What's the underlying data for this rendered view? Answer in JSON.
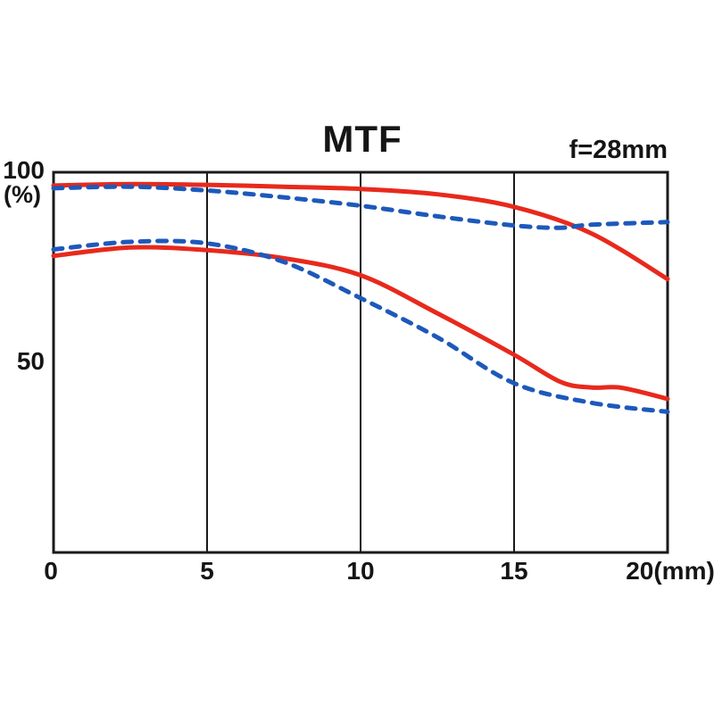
{
  "chart": {
    "title": "MTF",
    "annotation": "f=28mm",
    "y_axis": {
      "labels": [
        "100",
        "(%)",
        "50"
      ]
    },
    "x_axis": {
      "labels": [
        "0",
        "5",
        "10",
        "15",
        "20(mm)"
      ]
    }
  },
  "chart_data": {
    "type": "line",
    "title": "MTF",
    "annotation": "f=28mm",
    "x_unit": "mm",
    "y_unit": "%",
    "xlim": [
      0,
      20
    ],
    "ylim": [
      0,
      100
    ],
    "x_ticks": [
      0,
      5,
      10,
      15,
      20
    ],
    "y_ticks": [
      50,
      100
    ],
    "gridlines_x": [
      5,
      10,
      15
    ],
    "legend_position": "none",
    "frame_color": "#1a1a1a",
    "series": [
      {
        "name": "red solid upper",
        "color": "#e8291c",
        "style": "solid",
        "points": [
          [
            0,
            96.5
          ],
          [
            2.5,
            96.9
          ],
          [
            5,
            96.7
          ],
          [
            7.5,
            96.2
          ],
          [
            10,
            95.6
          ],
          [
            12.5,
            94.2
          ],
          [
            15,
            90.9
          ],
          [
            17.5,
            84.0
          ],
          [
            20,
            71.9
          ]
        ]
      },
      {
        "name": "red solid lower",
        "color": "#e8291c",
        "style": "solid",
        "points": [
          [
            0,
            78.0
          ],
          [
            2.5,
            80.2
          ],
          [
            5,
            79.5
          ],
          [
            7.5,
            77.4
          ],
          [
            10,
            72.9
          ],
          [
            12.5,
            62.9
          ],
          [
            15,
            52.0
          ],
          [
            16.5,
            44.9
          ],
          [
            17.5,
            43.4
          ],
          [
            18.5,
            43.3
          ],
          [
            20,
            40.4
          ]
        ]
      },
      {
        "name": "blue dashed upper",
        "color": "#1d59bb",
        "style": "dashed",
        "points": [
          [
            0,
            95.8
          ],
          [
            2.5,
            96.2
          ],
          [
            5,
            95.2
          ],
          [
            7.5,
            93.4
          ],
          [
            10,
            91.2
          ],
          [
            12.5,
            88.4
          ],
          [
            15,
            86.0
          ],
          [
            16.5,
            85.4
          ],
          [
            17.5,
            86.2
          ],
          [
            20,
            86.9
          ]
        ]
      },
      {
        "name": "blue dashed lower",
        "color": "#1d59bb",
        "style": "dashed",
        "points": [
          [
            0,
            79.7
          ],
          [
            2.5,
            81.7
          ],
          [
            5,
            81.3
          ],
          [
            7.5,
            76.4
          ],
          [
            10,
            66.9
          ],
          [
            12.5,
            56.6
          ],
          [
            15,
            44.5
          ],
          [
            17.5,
            39.4
          ],
          [
            20,
            37.0
          ]
        ]
      }
    ]
  }
}
